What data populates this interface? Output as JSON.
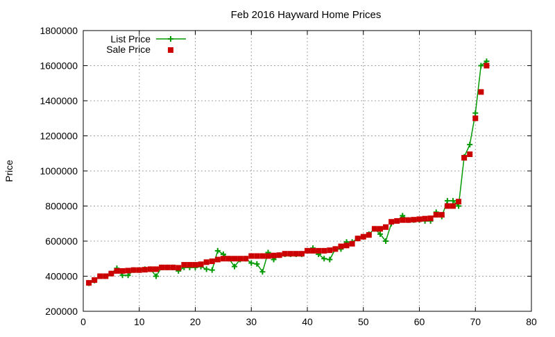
{
  "chart_data": {
    "type": "line",
    "title": "Feb 2016 Hayward Home Prices",
    "xlabel": "",
    "ylabel": "Price",
    "xlim": [
      0,
      80
    ],
    "ylim": [
      200000,
      1800000
    ],
    "x_ticks": [
      0,
      10,
      20,
      30,
      40,
      50,
      60,
      70,
      80
    ],
    "y_ticks": [
      200000,
      400000,
      600000,
      800000,
      1000000,
      1200000,
      1400000,
      1600000,
      1800000
    ],
    "grid": true,
    "legend_position": "top-left",
    "series": [
      {
        "name": "List Price",
        "style": "line-plus",
        "color": "#009900",
        "points": [
          [
            1,
            360000
          ],
          [
            2,
            375000
          ],
          [
            3,
            400000
          ],
          [
            4,
            400000
          ],
          [
            5,
            415000
          ],
          [
            6,
            445000
          ],
          [
            7,
            405000
          ],
          [
            8,
            405000
          ],
          [
            9,
            435000
          ],
          [
            10,
            435000
          ],
          [
            11,
            440000
          ],
          [
            12,
            440000
          ],
          [
            13,
            400000
          ],
          [
            14,
            450000
          ],
          [
            15,
            450000
          ],
          [
            16,
            450000
          ],
          [
            17,
            430000
          ],
          [
            18,
            450000
          ],
          [
            19,
            450000
          ],
          [
            20,
            450000
          ],
          [
            21,
            455000
          ],
          [
            22,
            440000
          ],
          [
            23,
            435000
          ],
          [
            24,
            545000
          ],
          [
            25,
            525000
          ],
          [
            26,
            500000
          ],
          [
            27,
            455000
          ],
          [
            28,
            495000
          ],
          [
            29,
            500000
          ],
          [
            30,
            475000
          ],
          [
            31,
            470000
          ],
          [
            32,
            425000
          ],
          [
            33,
            535000
          ],
          [
            34,
            495000
          ],
          [
            35,
            520000
          ],
          [
            36,
            525000
          ],
          [
            37,
            525000
          ],
          [
            38,
            525000
          ],
          [
            39,
            525000
          ],
          [
            40,
            545000
          ],
          [
            41,
            560000
          ],
          [
            42,
            525000
          ],
          [
            43,
            500000
          ],
          [
            44,
            495000
          ],
          [
            45,
            555000
          ],
          [
            46,
            555000
          ],
          [
            47,
            595000
          ],
          [
            48,
            595000
          ],
          [
            49,
            615000
          ],
          [
            50,
            625000
          ],
          [
            51,
            640000
          ],
          [
            52,
            670000
          ],
          [
            53,
            640000
          ],
          [
            54,
            600000
          ],
          [
            55,
            700000
          ],
          [
            56,
            715000
          ],
          [
            57,
            745000
          ],
          [
            58,
            720000
          ],
          [
            59,
            720000
          ],
          [
            60,
            720000
          ],
          [
            61,
            715000
          ],
          [
            62,
            715000
          ],
          [
            63,
            765000
          ],
          [
            64,
            740000
          ],
          [
            65,
            830000
          ],
          [
            66,
            830000
          ],
          [
            67,
            800000
          ],
          [
            68,
            1080000
          ],
          [
            69,
            1150000
          ],
          [
            70,
            1330000
          ],
          [
            71,
            1600000
          ],
          [
            72,
            1625000
          ]
        ]
      },
      {
        "name": "Sale Price",
        "style": "square",
        "color": "#cc0000",
        "points": [
          [
            1,
            362000
          ],
          [
            2,
            378000
          ],
          [
            3,
            400000
          ],
          [
            4,
            400000
          ],
          [
            5,
            415000
          ],
          [
            6,
            430000
          ],
          [
            7,
            430000
          ],
          [
            8,
            432000
          ],
          [
            9,
            435000
          ],
          [
            10,
            435000
          ],
          [
            11,
            437000
          ],
          [
            12,
            440000
          ],
          [
            13,
            440000
          ],
          [
            14,
            450000
          ],
          [
            15,
            450000
          ],
          [
            16,
            450000
          ],
          [
            17,
            448000
          ],
          [
            18,
            465000
          ],
          [
            19,
            465000
          ],
          [
            20,
            465000
          ],
          [
            21,
            468000
          ],
          [
            22,
            480000
          ],
          [
            23,
            485000
          ],
          [
            24,
            495000
          ],
          [
            25,
            500000
          ],
          [
            26,
            500000
          ],
          [
            27,
            500000
          ],
          [
            28,
            500000
          ],
          [
            29,
            500000
          ],
          [
            30,
            515000
          ],
          [
            31,
            515000
          ],
          [
            32,
            515000
          ],
          [
            33,
            515000
          ],
          [
            34,
            518000
          ],
          [
            35,
            520000
          ],
          [
            36,
            528000
          ],
          [
            37,
            528000
          ],
          [
            38,
            528000
          ],
          [
            39,
            528000
          ],
          [
            40,
            545000
          ],
          [
            41,
            545000
          ],
          [
            42,
            545000
          ],
          [
            43,
            545000
          ],
          [
            44,
            548000
          ],
          [
            45,
            555000
          ],
          [
            46,
            570000
          ],
          [
            47,
            575000
          ],
          [
            48,
            585000
          ],
          [
            49,
            615000
          ],
          [
            50,
            625000
          ],
          [
            51,
            635000
          ],
          [
            52,
            670000
          ],
          [
            53,
            670000
          ],
          [
            54,
            680000
          ],
          [
            55,
            710000
          ],
          [
            56,
            715000
          ],
          [
            57,
            720000
          ],
          [
            58,
            720000
          ],
          [
            59,
            722000
          ],
          [
            60,
            725000
          ],
          [
            61,
            728000
          ],
          [
            62,
            730000
          ],
          [
            63,
            750000
          ],
          [
            64,
            750000
          ],
          [
            65,
            800000
          ],
          [
            66,
            800000
          ],
          [
            67,
            825000
          ],
          [
            68,
            1075000
          ],
          [
            69,
            1095000
          ],
          [
            70,
            1300000
          ],
          [
            71,
            1450000
          ],
          [
            72,
            1600000
          ]
        ]
      }
    ]
  }
}
